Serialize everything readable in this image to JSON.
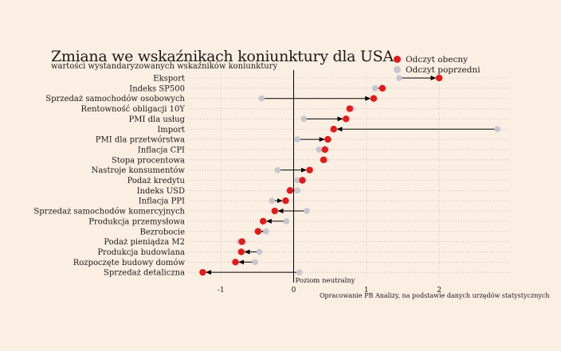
{
  "title": "Zmiana we wskaźnikach koniunktury dla USA",
  "subtitle": "wartości wystandaryzowanych wskaźników koniunktury",
  "source": "Opracowanie PB Analizy, na podstawie danych urzędów statystycznych",
  "colors": {
    "background": "#fbeee2",
    "current": "#e31a1c",
    "previous": "#c4c6d0",
    "arrow": "#000000",
    "grid": "#b9aaa0"
  },
  "chart_data": {
    "type": "scatter",
    "style": "dumbbell-arrow",
    "xlim": [
      -1.25,
      2.3
    ],
    "xticks": [
      -1,
      0,
      1,
      2
    ],
    "xtick_labels": [
      "-1",
      "0",
      "1",
      "2"
    ],
    "neutral_label": "Poziom neutralny",
    "grid": true,
    "legend_position": "top-right",
    "legend": {
      "current": "Odczyt obecny",
      "previous": "Odczyt poprzedni"
    },
    "series": [
      {
        "key": "current",
        "name": "Odczyt obecny"
      },
      {
        "key": "previous",
        "name": "Odczyt poprzedni"
      }
    ],
    "categories": [
      "Eksport",
      "Indeks SP500",
      "Sprzedaż samochodów osobowych",
      "Rentowność obligacji 10Y",
      "PMI dla usług",
      "Import",
      "PMI dla przetwórstwa",
      "Inflacja CPI",
      "Stopa procentowa",
      "Nastroje konsumentów",
      "Podaż kredytu",
      "Indeks USD",
      "Inflacja PPI",
      "Sprzedaż samochodów komercyjnych",
      "Produkcja przemysłowa",
      "Bezrobocie",
      "Podaż pieniądza M2",
      "Produkcja budowlana",
      "Rozpoczęte budowy domów",
      "Sprzedaż detaliczna"
    ],
    "current": [
      2.0,
      1.22,
      1.1,
      0.77,
      0.72,
      0.55,
      0.47,
      0.43,
      0.41,
      0.22,
      0.12,
      -0.05,
      -0.11,
      -0.26,
      -0.42,
      -0.49,
      -0.71,
      -0.72,
      -0.8,
      -1.25
    ],
    "previous": [
      1.45,
      1.12,
      -0.44,
      0.8,
      0.14,
      2.8,
      0.05,
      0.35,
      0.44,
      -0.22,
      0.05,
      0.05,
      -0.3,
      0.18,
      -0.1,
      -0.38,
      -0.74,
      -0.47,
      -0.53,
      0.08
    ]
  }
}
